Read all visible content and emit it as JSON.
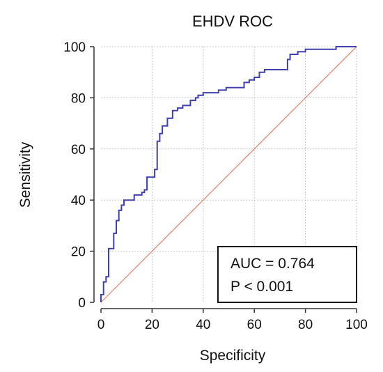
{
  "chart_data": {
    "type": "line",
    "title": "EHDV ROC",
    "xlabel": "Specificity",
    "ylabel": "Sensitivity",
    "xlim": [
      0,
      100
    ],
    "ylim": [
      0,
      100
    ],
    "xticks": [
      0,
      20,
      40,
      60,
      80,
      100
    ],
    "yticks": [
      0,
      20,
      40,
      60,
      80,
      100
    ],
    "grid": true,
    "colors": {
      "roc": "#3f3fad",
      "reference": "#e8806c",
      "grid": "#c8c8c8",
      "axis": "#333333"
    },
    "series": [
      {
        "x": [
          0,
          0,
          1,
          1,
          2,
          2,
          3,
          3,
          5,
          5,
          6,
          6,
          7,
          7,
          8,
          8,
          9,
          9,
          11,
          11,
          13,
          13,
          16,
          16,
          17,
          17,
          18,
          18,
          21,
          21,
          22,
          22,
          23,
          23,
          24,
          24,
          26,
          26,
          28,
          28,
          30,
          30,
          32,
          32,
          35,
          35,
          37,
          37,
          38,
          38,
          40,
          40,
          46,
          46,
          49,
          49,
          56,
          56,
          58,
          58,
          60,
          60,
          62,
          62,
          64,
          64,
          73,
          73,
          74,
          74,
          77,
          77,
          79,
          79,
          80,
          80,
          92,
          92,
          100
        ],
        "y": [
          0,
          3,
          3,
          8,
          8,
          10,
          10,
          21,
          21,
          27,
          27,
          32,
          32,
          36,
          36,
          38,
          38,
          40,
          40,
          40,
          40,
          42,
          42,
          43,
          43,
          44,
          44,
          49,
          49,
          52,
          52,
          63,
          63,
          66,
          66,
          69,
          69,
          72,
          72,
          75,
          75,
          76,
          76,
          77,
          77,
          79,
          79,
          80,
          80,
          81,
          81,
          82,
          82,
          83,
          83,
          84,
          84,
          86,
          86,
          87,
          87,
          88,
          88,
          90,
          90,
          91,
          91,
          95,
          95,
          97,
          97,
          98,
          98,
          98,
          98,
          99,
          99,
          100,
          100
        ]
      }
    ],
    "reference_line": {
      "x": [
        0,
        100
      ],
      "y": [
        0,
        100
      ]
    },
    "annotation": {
      "auc_text": "AUC = 0.764",
      "p_text": "P < 0.001"
    }
  }
}
